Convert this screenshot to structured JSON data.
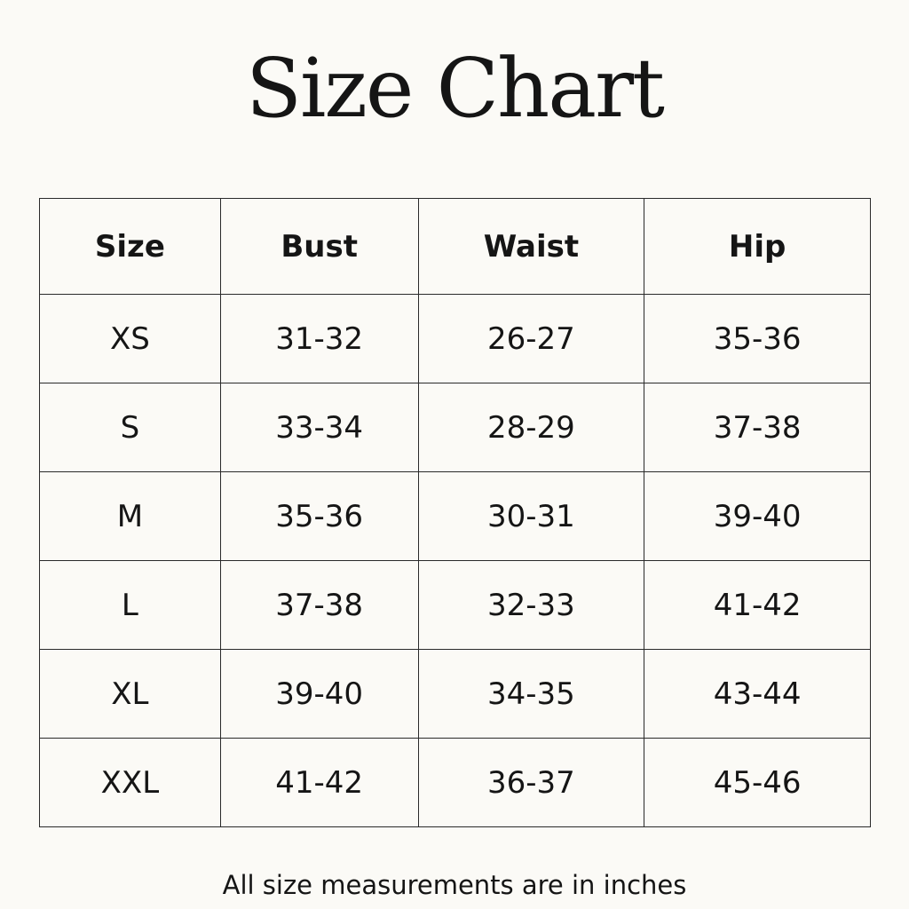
{
  "title": "Size Chart",
  "table": {
    "headers": [
      "Size",
      "Bust",
      "Waist",
      "Hip"
    ],
    "rows": [
      [
        "XS",
        "31-32",
        "26-27",
        "35-36"
      ],
      [
        "S",
        "33-34",
        "28-29",
        "37-38"
      ],
      [
        "M",
        "35-36",
        "30-31",
        "39-40"
      ],
      [
        "L",
        "37-38",
        "32-33",
        "41-42"
      ],
      [
        "XL",
        "39-40",
        "34-35",
        "43-44"
      ],
      [
        "XXL",
        "41-42",
        "36-37",
        "45-46"
      ]
    ]
  },
  "footer": "All size measurements are in inches"
}
